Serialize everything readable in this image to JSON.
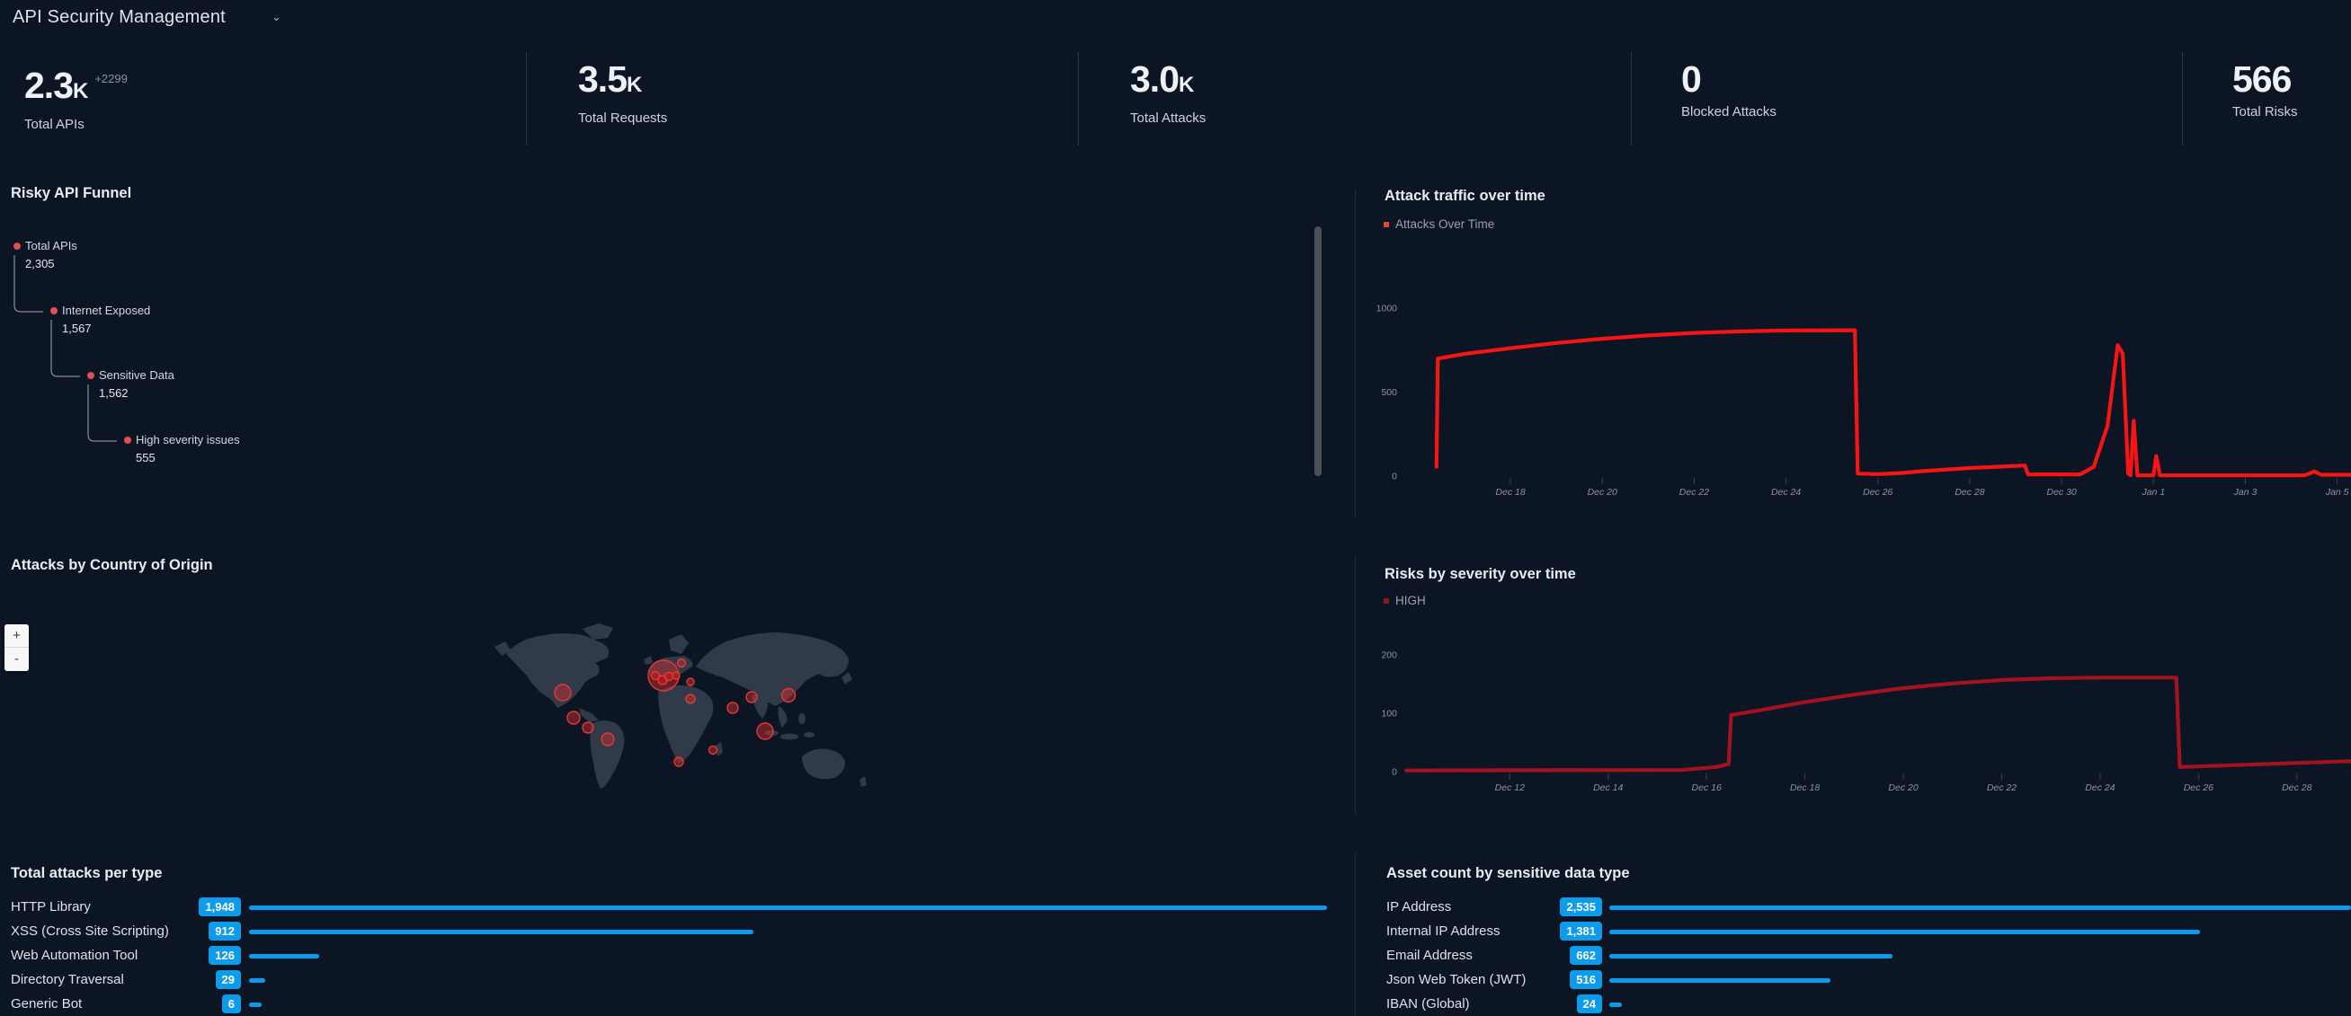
{
  "header": {
    "title": "API Security Management"
  },
  "kpis": [
    {
      "value": "2.3",
      "suffix": "K",
      "delta": "+2299",
      "label": "Total APIs"
    },
    {
      "value": "3.5",
      "suffix": "K",
      "label": "Total Requests"
    },
    {
      "value": "3.0",
      "suffix": "K",
      "label": "Total Attacks"
    },
    {
      "value": "0",
      "suffix": "",
      "label": "Blocked Attacks"
    },
    {
      "value": "566",
      "suffix": "",
      "label": "Total Risks"
    }
  ],
  "panels": {
    "funnel": {
      "title": "Risky API Funnel",
      "steps": [
        {
          "label": "Total APIs",
          "value": "2,305"
        },
        {
          "label": "Internet Exposed",
          "value": "1,567"
        },
        {
          "label": "Sensitive Data",
          "value": "1,562"
        },
        {
          "label": "High severity issues",
          "value": "555"
        }
      ]
    },
    "attack_traffic": {
      "title": "Attack traffic over time",
      "legend": "Attacks Over Time"
    },
    "map": {
      "title": "Attacks by Country of Origin",
      "zoom_in": "+",
      "zoom_out": "-"
    },
    "risks_severity": {
      "title": "Risks by severity over time",
      "legend": "HIGH"
    },
    "attacks_per_type": {
      "title": "Total attacks per type"
    },
    "asset_count": {
      "title": "Asset count by sensitive data type"
    }
  },
  "chart_data": [
    {
      "type": "line",
      "title": "Attack traffic over time",
      "series_name": "Attacks Over Time",
      "color": "#f51515",
      "ylim": [
        0,
        1070
      ],
      "y_ticks": [
        0,
        500,
        1000
      ],
      "x_ticks": [
        {
          "label": "Dec 18",
          "day": 18
        },
        {
          "label": "Dec 20",
          "day": 20
        },
        {
          "label": "Dec 22",
          "day": 22
        },
        {
          "label": "Dec 24",
          "day": 24
        },
        {
          "label": "Dec 26",
          "day": 26
        },
        {
          "label": "Dec 28",
          "day": 28
        },
        {
          "label": "Dec 30",
          "day": 30
        },
        {
          "label": "Jan 1",
          "day": 32
        },
        {
          "label": "Jan 3",
          "day": 34
        },
        {
          "label": "Jan 5",
          "day": 36
        }
      ],
      "x_domain": [
        15.65,
        36.3
      ],
      "points": [
        [
          16.39,
          55
        ],
        [
          16.42,
          700
        ],
        [
          17,
          728
        ],
        [
          18,
          762
        ],
        [
          19,
          793
        ],
        [
          20,
          818
        ],
        [
          21,
          838
        ],
        [
          22,
          853
        ],
        [
          23,
          862
        ],
        [
          24,
          867
        ],
        [
          25.5,
          869
        ],
        [
          25.56,
          15
        ],
        [
          26,
          12
        ],
        [
          26.5,
          18
        ],
        [
          27,
          30
        ],
        [
          28,
          48
        ],
        [
          29.2,
          63
        ],
        [
          29.27,
          10
        ],
        [
          30.4,
          10
        ],
        [
          30.7,
          55
        ],
        [
          31.0,
          300
        ],
        [
          31.22,
          780
        ],
        [
          31.33,
          730
        ],
        [
          31.45,
          15
        ],
        [
          31.5,
          5
        ],
        [
          31.57,
          330
        ],
        [
          31.65,
          5
        ],
        [
          32.0,
          5
        ],
        [
          32.06,
          120
        ],
        [
          32.14,
          5
        ],
        [
          35.3,
          5
        ],
        [
          35.5,
          28
        ],
        [
          35.65,
          8
        ],
        [
          36.3,
          8
        ]
      ]
    },
    {
      "type": "line",
      "title": "Risks by severity over time",
      "series_name": "HIGH",
      "color": "#a3131f",
      "ylim": [
        0,
        200
      ],
      "y_ticks": [
        0,
        100,
        200
      ],
      "x_ticks": [
        {
          "label": "Dec 12",
          "day": 12
        },
        {
          "label": "Dec 14",
          "day": 14
        },
        {
          "label": "Dec 16",
          "day": 16
        },
        {
          "label": "Dec 18",
          "day": 18
        },
        {
          "label": "Dec 20",
          "day": 20
        },
        {
          "label": "Dec 22",
          "day": 22
        },
        {
          "label": "Dec 24",
          "day": 24
        },
        {
          "label": "Dec 26",
          "day": 26
        },
        {
          "label": "Dec 28",
          "day": 28
        }
      ],
      "x_domain": [
        9.82,
        29.1
      ],
      "points": [
        [
          9.9,
          2
        ],
        [
          15.5,
          3
        ],
        [
          16.2,
          8
        ],
        [
          16.45,
          13
        ],
        [
          16.5,
          97
        ],
        [
          17,
          104
        ],
        [
          18,
          119
        ],
        [
          19,
          132
        ],
        [
          20,
          143
        ],
        [
          21,
          151
        ],
        [
          22,
          157
        ],
        [
          23,
          160
        ],
        [
          24,
          161
        ],
        [
          25.55,
          161
        ],
        [
          25.62,
          8
        ],
        [
          26,
          9
        ],
        [
          27,
          12
        ],
        [
          28,
          15
        ],
        [
          29.1,
          18
        ]
      ]
    },
    {
      "type": "bar",
      "title": "Total attacks per type",
      "categories": [
        "HTTP Library",
        "XSS (Cross Site Scripting)",
        "Web Automation Tool",
        "Directory Traversal",
        "Generic Bot"
      ],
      "values": [
        1948,
        912,
        126,
        29,
        6
      ],
      "value_labels": [
        "1,948",
        "912",
        "126",
        "29",
        "6"
      ]
    },
    {
      "type": "bar",
      "title": "Asset count by sensitive data type",
      "categories": [
        "IP Address",
        "Internal IP Address",
        "Email Address",
        "Json Web Token (JWT)",
        "IBAN (Global)"
      ],
      "values": [
        2535,
        1381,
        662,
        516,
        24
      ],
      "value_labels": [
        "2,535",
        "1,381",
        "662",
        "516",
        "24"
      ]
    }
  ],
  "map_bubbles": [
    {
      "x": 78,
      "y": 81,
      "r": 9,
      "kind": "outer"
    },
    {
      "x": 90,
      "y": 109,
      "r": 7,
      "kind": "outer"
    },
    {
      "x": 106,
      "y": 120,
      "r": 6,
      "kind": "outer"
    },
    {
      "x": 128,
      "y": 133,
      "r": 7,
      "kind": "outer"
    },
    {
      "x": 190,
      "y": 62,
      "r": 17,
      "kind": "outer"
    },
    {
      "x": 181,
      "y": 62,
      "r": 4.5,
      "kind": "inner"
    },
    {
      "x": 189,
      "y": 67,
      "r": 5,
      "kind": "inner"
    },
    {
      "x": 196,
      "y": 63,
      "r": 4.5,
      "kind": "inner"
    },
    {
      "x": 204,
      "y": 62,
      "r": 4,
      "kind": "inner"
    },
    {
      "x": 210,
      "y": 48,
      "r": 4.5,
      "kind": "outer"
    },
    {
      "x": 220,
      "y": 69,
      "r": 4,
      "kind": "outer"
    },
    {
      "x": 220,
      "y": 88,
      "r": 5,
      "kind": "outer"
    },
    {
      "x": 267,
      "y": 98,
      "r": 6,
      "kind": "outer"
    },
    {
      "x": 288,
      "y": 86,
      "r": 6,
      "kind": "outer"
    },
    {
      "x": 329,
      "y": 84,
      "r": 7.5,
      "kind": "outer"
    },
    {
      "x": 303,
      "y": 124,
      "r": 9,
      "kind": "outer"
    },
    {
      "x": 245,
      "y": 145,
      "r": 4.5,
      "kind": "outer"
    },
    {
      "x": 207,
      "y": 158,
      "r": 5,
      "kind": "outer"
    }
  ],
  "colors": {
    "background": "#0c1523",
    "accent_blue": "#0c9ceb",
    "line_red_bright": "#f51515",
    "line_red_dark": "#a3131f",
    "funnel_dot": "#e14f4f",
    "bubble_stroke": "#e53935"
  }
}
